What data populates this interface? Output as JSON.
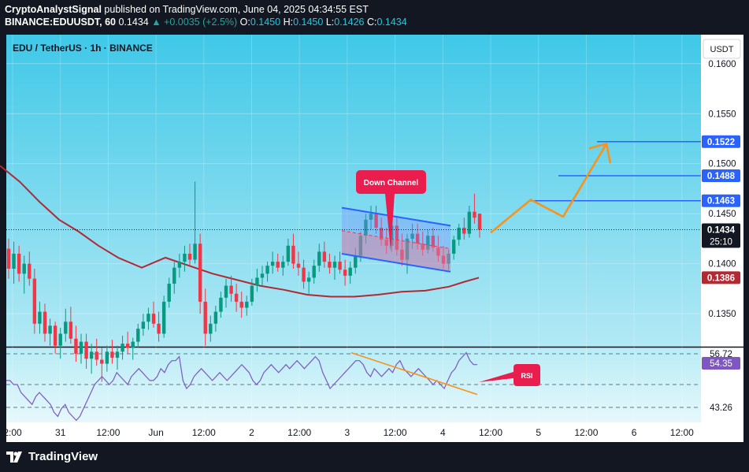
{
  "header": {
    "line1_user": "CryptoAnalystSignal",
    "line1_rest": " published on TradingView.com, June 04, 2025 04:34:55 EST",
    "symbol": "BINANCE:EDUUSDT, 60",
    "last": "0.1434",
    "change": "+0.0035 (+2.5%)",
    "o_label": "O:",
    "o_val": "0.1450",
    "h_label": "H:",
    "h_val": "0.1450",
    "l_label": "L:",
    "l_val": "0.1426",
    "c_label": "C:",
    "c_val": "0.1434"
  },
  "chart_title": "EDU / TetherUS · 1h · BINANCE",
  "currency_button": "USDT",
  "footer_brand": "TradingView",
  "colors": {
    "background": "#131722",
    "up_candle": "#089981",
    "down_candle": "#f23645",
    "ma_line": "#b22833",
    "rsi_line": "#7e57c2",
    "level_line": "#2962ff",
    "projection": "#f7931a",
    "annotation": "#e91e4f"
  },
  "chart_data": {
    "type": "candlestick",
    "price_axis": {
      "ticks": [
        "0.1600",
        "0.1550",
        "0.1500",
        "0.1450",
        "0.1400",
        "0.1350"
      ],
      "range": [
        0.1317,
        0.1629
      ]
    },
    "time_axis": {
      "ticks": [
        "2:00",
        "31",
        "12:00",
        "Jun",
        "12:00",
        "2",
        "12:00",
        "3",
        "12:00",
        "4",
        "12:00",
        "5",
        "12:00",
        "6",
        "12:00"
      ]
    },
    "price_labels": [
      {
        "value": 0.1522,
        "text": "0.1522",
        "kind": "level"
      },
      {
        "value": 0.1488,
        "text": "0.1488",
        "kind": "level"
      },
      {
        "value": 0.1463,
        "text": "0.1463",
        "kind": "level"
      },
      {
        "value": 0.1434,
        "text": "0.1434",
        "kind": "last",
        "countdown": "25:10"
      },
      {
        "value": 0.1386,
        "text": "0.1386",
        "kind": "ma"
      }
    ],
    "ohlc": [
      [
        0.1415,
        0.1425,
        0.1385,
        0.1395
      ],
      [
        0.1395,
        0.1422,
        0.138,
        0.141
      ],
      [
        0.141,
        0.1418,
        0.1382,
        0.139
      ],
      [
        0.139,
        0.1408,
        0.137,
        0.14
      ],
      [
        0.14,
        0.1412,
        0.1378,
        0.1385
      ],
      [
        0.1385,
        0.1395,
        0.133,
        0.134
      ],
      [
        0.134,
        0.1362,
        0.133,
        0.1352
      ],
      [
        0.1352,
        0.136,
        0.1322,
        0.133
      ],
      [
        0.133,
        0.1345,
        0.1318,
        0.1338
      ],
      [
        0.1338,
        0.1342,
        0.131,
        0.1318
      ],
      [
        0.1318,
        0.1336,
        0.1305,
        0.133
      ],
      [
        0.133,
        0.1355,
        0.1322,
        0.1342
      ],
      [
        0.1342,
        0.1357,
        0.132,
        0.1325
      ],
      [
        0.1325,
        0.1338,
        0.1302,
        0.131
      ],
      [
        0.131,
        0.133,
        0.13,
        0.1322
      ],
      [
        0.1322,
        0.133,
        0.1295,
        0.1305
      ],
      [
        0.1305,
        0.132,
        0.129,
        0.1312
      ],
      [
        0.1312,
        0.1325,
        0.1298,
        0.1304
      ],
      [
        0.1304,
        0.1316,
        0.1282,
        0.13
      ],
      [
        0.13,
        0.1318,
        0.1292,
        0.1312
      ],
      [
        0.1312,
        0.1324,
        0.13,
        0.1306
      ],
      [
        0.1306,
        0.1318,
        0.1294,
        0.1312
      ],
      [
        0.1312,
        0.1328,
        0.1304,
        0.132
      ],
      [
        0.132,
        0.1332,
        0.131,
        0.1316
      ],
      [
        0.1316,
        0.1326,
        0.1304,
        0.1322
      ],
      [
        0.1322,
        0.134,
        0.1316,
        0.1335
      ],
      [
        0.1335,
        0.135,
        0.1328,
        0.1342
      ],
      [
        0.1342,
        0.1356,
        0.1334,
        0.135
      ],
      [
        0.135,
        0.1362,
        0.1336,
        0.134
      ],
      [
        0.134,
        0.1352,
        0.1322,
        0.133
      ],
      [
        0.133,
        0.1368,
        0.1326,
        0.1362
      ],
      [
        0.1362,
        0.1386,
        0.1356,
        0.138
      ],
      [
        0.138,
        0.1402,
        0.137,
        0.1396
      ],
      [
        0.1396,
        0.141,
        0.1386,
        0.1402
      ],
      [
        0.1402,
        0.1418,
        0.1392,
        0.141
      ],
      [
        0.141,
        0.142,
        0.1398,
        0.1404
      ],
      [
        0.1404,
        0.1482,
        0.14,
        0.142
      ],
      [
        0.142,
        0.143,
        0.135,
        0.1362
      ],
      [
        0.1362,
        0.1375,
        0.1318,
        0.133
      ],
      [
        0.133,
        0.1348,
        0.1322,
        0.134
      ],
      [
        0.134,
        0.1358,
        0.1332,
        0.1352
      ],
      [
        0.1352,
        0.1372,
        0.1346,
        0.1366
      ],
      [
        0.1366,
        0.1385,
        0.1356,
        0.1378
      ],
      [
        0.1378,
        0.1388,
        0.1362,
        0.137
      ],
      [
        0.137,
        0.138,
        0.1352,
        0.1362
      ],
      [
        0.1362,
        0.1372,
        0.1346,
        0.1356
      ],
      [
        0.1356,
        0.1368,
        0.1348,
        0.1362
      ],
      [
        0.1362,
        0.1385,
        0.1358,
        0.1378
      ],
      [
        0.1378,
        0.1395,
        0.1372,
        0.1386
      ],
      [
        0.1386,
        0.1398,
        0.1378,
        0.139
      ],
      [
        0.139,
        0.1402,
        0.1382,
        0.1398
      ],
      [
        0.1398,
        0.1412,
        0.139,
        0.1402
      ],
      [
        0.1402,
        0.141,
        0.1392,
        0.1396
      ],
      [
        0.1396,
        0.1408,
        0.1388,
        0.1402
      ],
      [
        0.1402,
        0.1425,
        0.1398,
        0.1418
      ],
      [
        0.1418,
        0.143,
        0.1395,
        0.14
      ],
      [
        0.14,
        0.1412,
        0.1388,
        0.1396
      ],
      [
        0.1396,
        0.1404,
        0.1375,
        0.1382
      ],
      [
        0.1382,
        0.1392,
        0.137,
        0.1386
      ],
      [
        0.1386,
        0.1404,
        0.138,
        0.1398
      ],
      [
        0.1398,
        0.142,
        0.1392,
        0.1412
      ],
      [
        0.1412,
        0.1422,
        0.1396,
        0.1402
      ],
      [
        0.1402,
        0.141,
        0.139,
        0.1396
      ],
      [
        0.1396,
        0.1408,
        0.1384,
        0.1402
      ],
      [
        0.1402,
        0.1412,
        0.139,
        0.1394
      ],
      [
        0.1394,
        0.1404,
        0.1378,
        0.1388
      ],
      [
        0.1388,
        0.1402,
        0.138,
        0.1396
      ],
      [
        0.1396,
        0.1416,
        0.139,
        0.1408
      ],
      [
        0.1408,
        0.1432,
        0.1402,
        0.1428
      ],
      [
        0.1428,
        0.145,
        0.142,
        0.1444
      ],
      [
        0.1444,
        0.1458,
        0.1434,
        0.145
      ],
      [
        0.145,
        0.1458,
        0.143,
        0.1436
      ],
      [
        0.1436,
        0.1446,
        0.1418,
        0.1424
      ],
      [
        0.1424,
        0.1436,
        0.141,
        0.1418
      ],
      [
        0.1418,
        0.1444,
        0.1412,
        0.1438
      ],
      [
        0.1438,
        0.1446,
        0.1408,
        0.1414
      ],
      [
        0.1414,
        0.143,
        0.1398,
        0.1404
      ],
      [
        0.1404,
        0.143,
        0.139,
        0.1425
      ],
      [
        0.1425,
        0.144,
        0.1415,
        0.143
      ],
      [
        0.143,
        0.144,
        0.1414,
        0.142
      ],
      [
        0.142,
        0.1432,
        0.1408,
        0.1414
      ],
      [
        0.1414,
        0.1434,
        0.141,
        0.1428
      ],
      [
        0.1428,
        0.1436,
        0.1412,
        0.1416
      ],
      [
        0.1416,
        0.1428,
        0.1402,
        0.1408
      ],
      [
        0.1408,
        0.1418,
        0.1395,
        0.14
      ],
      [
        0.14,
        0.1414,
        0.1394,
        0.141
      ],
      [
        0.141,
        0.1428,
        0.1404,
        0.1424
      ],
      [
        0.1424,
        0.144,
        0.1418,
        0.1436
      ],
      [
        0.1436,
        0.1446,
        0.1424,
        0.143
      ],
      [
        0.143,
        0.1458,
        0.1426,
        0.1452
      ],
      [
        0.1452,
        0.147,
        0.144,
        0.1446
      ],
      [
        0.145,
        0.145,
        0.1426,
        0.1434
      ]
    ],
    "moving_average": [
      [
        0,
        0.1498
      ],
      [
        25,
        0.1482
      ],
      [
        50,
        0.1462
      ],
      [
        75,
        0.1444
      ],
      [
        100,
        0.1432
      ],
      [
        125,
        0.1418
      ],
      [
        150,
        0.1406
      ],
      [
        180,
        0.1396
      ],
      [
        210,
        0.1406
      ],
      [
        240,
        0.1398
      ],
      [
        270,
        0.139
      ],
      [
        300,
        0.1384
      ],
      [
        330,
        0.1378
      ],
      [
        360,
        0.1374
      ],
      [
        390,
        0.1369
      ],
      [
        420,
        0.1367
      ],
      [
        450,
        0.1367
      ],
      [
        480,
        0.1369
      ],
      [
        510,
        0.1372
      ],
      [
        540,
        0.1373
      ],
      [
        570,
        0.1377
      ],
      [
        590,
        0.1382
      ],
      [
        608,
        0.1386
      ]
    ],
    "level_lines": [
      {
        "value": 0.1522,
        "x_start": 758
      },
      {
        "value": 0.1488,
        "x_start": 709
      },
      {
        "value": 0.1463,
        "x_start": 671
      }
    ],
    "channel": {
      "label": "Down Channel",
      "upper": [
        [
          434,
          0.1456
        ],
        [
          572,
          0.1438
        ]
      ],
      "lower": [
        [
          434,
          0.141
        ],
        [
          572,
          0.1392
        ]
      ]
    },
    "projection": [
      [
        623,
        0.1431
      ],
      [
        674,
        0.1464
      ],
      [
        715,
        0.1447
      ],
      [
        770,
        0.152
      ]
    ],
    "rsi": {
      "label": "RSI",
      "ticks": [
        "56.72",
        "54.35",
        "43.26"
      ],
      "current": 54.35,
      "range": [
        39.5,
        58.5
      ],
      "bands": [
        56.72,
        49.0,
        43.26
      ],
      "values": [
        50,
        50,
        49,
        49,
        47,
        46,
        45,
        44,
        46,
        47,
        46,
        45,
        44,
        42,
        41,
        43,
        44,
        42,
        41,
        40,
        41,
        43,
        45,
        47,
        49,
        50,
        51,
        50,
        49,
        50,
        52,
        51,
        50,
        49,
        51,
        52,
        53,
        52,
        51,
        50,
        50,
        51,
        53,
        52,
        54,
        55,
        55,
        56,
        50,
        48,
        49,
        51,
        52,
        53,
        52,
        51,
        50,
        51,
        52,
        51,
        50,
        51,
        52,
        53,
        54,
        53,
        52,
        50,
        49,
        50,
        52,
        53,
        54,
        53,
        52,
        53,
        54,
        53,
        54,
        55,
        54,
        53,
        54,
        55,
        56,
        55,
        52,
        50,
        48,
        49,
        50,
        51,
        52,
        53,
        54,
        55,
        55,
        54,
        52,
        51,
        53,
        52,
        51,
        52,
        53,
        52,
        54,
        55,
        53,
        52,
        51,
        52,
        53,
        52,
        51,
        50,
        49,
        50,
        49,
        48,
        50,
        52,
        53,
        55,
        56,
        57,
        55,
        54,
        54
      ],
      "divergence": [
        [
          446,
          57.0
        ],
        [
          606,
          46.5
        ]
      ]
    }
  }
}
